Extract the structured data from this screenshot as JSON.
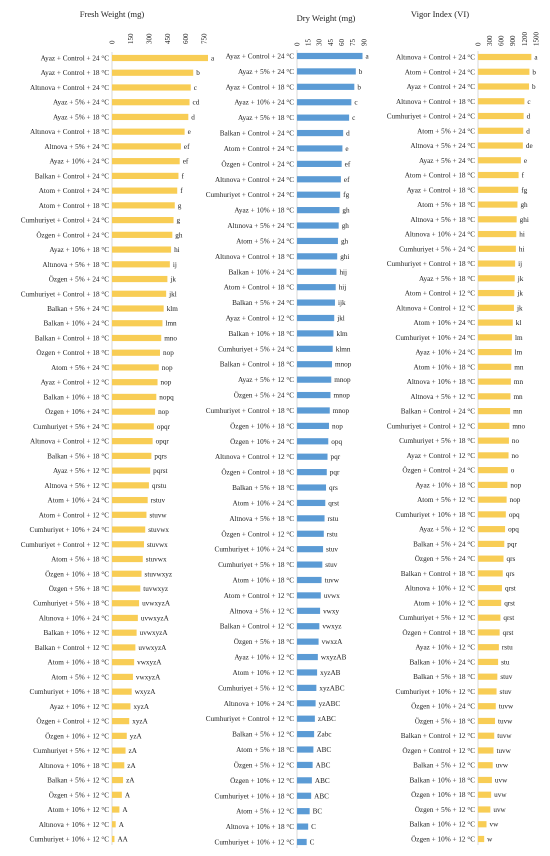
{
  "chart_data": [
    {
      "type": "bar",
      "orientation": "horizontal",
      "title": "Fresh Weight (mg)",
      "xticks": [
        0,
        150,
        300,
        450,
        600,
        750
      ],
      "xlim": [
        0,
        780
      ],
      "color": "#f8cd55",
      "categories": [
        "Ayaz + Control + 24 °C",
        "Ayaz + Control + 18 °C",
        "Altınova + Control + 24 °C",
        "Ayaz + 5% + 24 °C",
        "Ayaz + 5% + 18 °C",
        "Altınova + Control + 18 °C",
        "Altnova + 5% + 24 °C",
        "Ayaz + 10% + 24 °C",
        "Balkan + Control + 24 °C",
        "Atom + Control + 24 °C",
        "Atom + Control + 18 °C",
        "Cumhuriyet + Control + 24 °C",
        "Özgen + Control + 24 °C",
        "Ayaz + 10% + 18 °C",
        "Altınova + 5% + 18 °C",
        "Özgen + 5% + 24 °C",
        "Cumhuriyet + Control + 18 °C",
        "Balkan + 5% + 24 °C",
        "Balkan + 10% + 24 °C",
        "Balkan + Control + 18 °C",
        "Özgen + Control + 18 °C",
        "Atom + 5% + 24 °C",
        "Ayaz + Control + 12 °C",
        "Balkan + 10% + 18 °C",
        "Özgen + 10% + 24 °C",
        "Cumhuriyet + 5% + 24 °C",
        "Altınova + Control + 12 °C",
        "Balkan + 5% + 18 °C",
        "Ayaz + 5% + 12 °C",
        "Altnova + 5% + 12 °C",
        "Atom + 10% + 24 °C",
        "Atom + Control + 12 °C",
        "Cumhuriyet + 10% + 24 °C",
        "Cumhuriyet + Control + 12 °C",
        "Atom + 5% + 18 °C",
        "Özgen + 10% + 18 °C",
        "Özgen + 5% + 18 °C",
        "Cumhuriyet + 5% + 18 °C",
        "Altınova + 10% + 24 °C",
        "Balkan + 10% + 12 °C",
        "Balkan + Control + 12 °C",
        "Atom + 10% + 18 °C",
        "Atom + 5% + 12 °C",
        "Cumhuriyet + 10% + 18 °C",
        "Ayaz + 10% + 12 °C",
        "Özgen + Control + 12 °C",
        "Özgen + 10% + 12 °C",
        "Cumhuriyet + 5% + 12 °C",
        "Altınova + 10% + 18 °C",
        "Balkan + 5% + 12 °C",
        "Özgen + 5% + 12 °C",
        "Atom + 10% + 12 °C",
        "Altınova + 10% + 12 °C",
        "Cumhuriyet + 10% + 12 °C"
      ],
      "values": [
        780,
        660,
        640,
        630,
        620,
        590,
        560,
        550,
        540,
        530,
        510,
        500,
        490,
        480,
        470,
        450,
        440,
        420,
        410,
        400,
        390,
        380,
        370,
        360,
        350,
        340,
        330,
        320,
        310,
        300,
        290,
        280,
        270,
        260,
        250,
        240,
        230,
        220,
        210,
        200,
        190,
        180,
        170,
        160,
        150,
        140,
        120,
        110,
        100,
        90,
        80,
        60,
        30,
        20
      ],
      "labels": [
        "a",
        "b",
        "c",
        "cd",
        "d",
        "e",
        "ef",
        "ef",
        "f",
        "f",
        "g",
        "g",
        "gh",
        "hi",
        "ij",
        "jk",
        "jkl",
        "klm",
        "lmn",
        "mno",
        "nop",
        "nop",
        "nop",
        "nopq",
        "nop",
        "opqr",
        "opqr",
        "pqrs",
        "pqrst",
        "qrstu",
        "rstuv",
        "stuvw",
        "stuvwx",
        "stuvwx",
        "stuvwx",
        "stuvwxyz",
        "tuvwxyz",
        "uvwxyzA",
        "uvwxyzA",
        "uvwxyzA",
        "uvwxyzA",
        "vwxyzA",
        "vwxyzA",
        "wxyzA",
        "xyzA",
        "xyzA",
        "yzA",
        "zA",
        "zA",
        "zA",
        "A",
        "A",
        "A",
        "AA"
      ]
    },
    {
      "type": "bar",
      "orientation": "horizontal",
      "title": "Dry Weight (mg)",
      "xticks": [
        0,
        15,
        30,
        45,
        60,
        75,
        90
      ],
      "xlim": [
        0,
        90
      ],
      "color": "#5b9bd5",
      "categories": [
        "Ayaz + Control + 24 °C",
        "Ayaz + 5% + 24 °C",
        "Ayaz + Control + 18 °C",
        "Ayaz + 10% + 24 °C",
        "Ayaz + 5% + 18 °C",
        "Balkan + Control + 24 °C",
        "Atom + Control + 24 °C",
        "Özgen + Control + 24 °C",
        "Altınova + Control + 24 °C",
        "Cumhuriyet + Control + 24 °C",
        "Ayaz + 10% + 18 °C",
        "Altınova + 5% + 24 °C",
        "Atom + 5% + 24 °C",
        "Altınova + Control + 18 °C",
        "Balkan + 10% + 24 °C",
        "Atom + Control + 18 °C",
        "Balkan + 5% + 24 °C",
        "Ayaz + Control + 12 °C",
        "Balkan + 10% + 18 °C",
        "Cumhuriyet + 5% + 24 °C",
        "Balkan + Control + 18 °C",
        "Ayaz + 5% + 12 °C",
        "Özgen + 5% + 24 °C",
        "Cumhuriyet + Control + 18 °C",
        "Özgen + 10% + 18 °C",
        "Özgen + 10% + 24 °C",
        "Altınova + Control + 12 °C",
        "Özgen + Control + 18 °C",
        "Balkan + 5% + 18 °C",
        "Atom + 10% + 24 °C",
        "Altnova + 5% + 18 °C",
        "Özgen + Control + 12 °C",
        "Cumhuriyet + 10% + 24 °C",
        "Cumhuriyet + 5% + 18 °C",
        "Atom + 10% + 18 °C",
        "Atom + Control + 12 °C",
        "Altnova + 5% + 12 °C",
        "Balkan + Control + 12 °C",
        "Özgen + 5% + 18 °C",
        "Ayaz + 10% + 12 °C",
        "Atom + 10% + 12 °C",
        "Cumhuriyet + 5% + 12 °C",
        "Altınova + 10% + 24 °C",
        "Cumhuriyet + Control + 12 °C",
        "Balkan + 5% + 12 °C",
        "Atom + 5% + 18 °C",
        "Özgen + 5% + 12 °C",
        "Özgen + 10% + 12 °C",
        "Cumhuriyet + 10% + 18 °C",
        "Atom + 5% + 12 °C",
        "Altnova + 10% + 18 °C",
        "Cumhuriyet + 10% + 12 °C"
      ],
      "values": [
        88,
        79,
        77,
        73,
        70,
        62,
        61,
        60,
        59,
        58,
        57,
        56,
        55,
        54,
        53,
        52,
        51,
        50,
        49,
        48,
        47,
        46,
        45,
        44,
        43,
        42,
        41,
        40,
        39,
        38,
        37,
        36,
        35,
        34,
        33,
        32,
        31,
        30,
        29,
        28,
        27,
        26,
        25,
        24,
        23,
        22,
        21,
        20,
        19,
        17,
        15,
        13
      ],
      "labels": [
        "a",
        "b",
        "b",
        "c",
        "c",
        "d",
        "e",
        "ef",
        "ef",
        "fg",
        "gh",
        "gh",
        "gh",
        "ghi",
        "hij",
        "hij",
        "ijk",
        "jkl",
        "klm",
        "klmn",
        "mnop",
        "mnop",
        "mnop",
        "mnop",
        "nop",
        "opq",
        "pqr",
        "pqr",
        "qrs",
        "qrst",
        "rstu",
        "rstu",
        "stuv",
        "stuv",
        "tuvw",
        "uvwx",
        "vwxy",
        "vwxyz",
        "vwxzA",
        "wxyzAB",
        "xyzAB",
        "xyzABC",
        "yzABC",
        "zABC",
        "Zabc",
        "ABC",
        "ABC",
        "ABC",
        "ABC",
        "BC",
        "C",
        "C"
      ]
    },
    {
      "type": "bar",
      "orientation": "horizontal",
      "title": "Vigor Index (VI)",
      "xticks": [
        0,
        300,
        600,
        900,
        1200,
        1500
      ],
      "xlim": [
        0,
        1500
      ],
      "color": "#f8cd55",
      "categories": [
        "Altınova + Control + 24 °C",
        "Atom + Control + 24 °C",
        "Ayaz + Control + 24 °C",
        "Altınova + Control + 18 °C",
        "Cumhuriyet + Control + 24 °C",
        "Atom + 5% + 24 °C",
        "Altnova + 5% + 24 °C",
        "Ayaz + 5% + 24 °C",
        "Atom + Control + 18 °C",
        "Ayaz + Control + 18 °C",
        "Atom + 5% + 18 °C",
        "Altnova + 5% + 18 °C",
        "Altınova + 10% + 24 °C",
        "Cumhuriyet + 5% + 24 °C",
        "Cumhuriyet + Control + 18 °C",
        "Ayaz + 5% + 18 °C",
        "Atom + Control + 12 °C",
        "Altınova + Control + 12 °C",
        "Atom + 10% + 24 °C",
        "Cumhuriyet + 10% + 24 °C",
        "Ayaz + 10% + 24 °C",
        "Atom + 10% + 18 °C",
        "Altnova + 10% + 18 °C",
        "Altnova + 5% + 12 °C",
        "Balkan + Control + 24 °C",
        "Cumhuriyet + Control + 12 °C",
        "Cumhuriyet + 5% + 18 °C",
        "Ayaz + Control + 12 °C",
        "Özgen + Control + 24 °C",
        "Ayaz + 10% + 18 °C",
        "Atom + 5% + 12 °C",
        "Cumhuriyet + 10% + 18 °C",
        "Ayaz + 5% + 12 °C",
        "Balkan + 5% + 24 °C",
        "Özgen + 5% + 24 °C",
        "Balkan + Control + 18 °C",
        "Altınova + 10% + 12 °C",
        "Atom + 10% + 12 °C",
        "Cumhuriyet + 5% + 12 °C",
        "Özgen + Control + 18 °C",
        "Ayaz + 10% + 12 °C",
        "Balkan + 10% + 24 °C",
        "Balkan + 5% + 18 °C",
        "Cumhuriyet + 10% + 12 °C",
        "Özgen + 10% + 24 °C",
        "Özgen + 5% + 18 °C",
        "Balkan + Control + 12 °C",
        "Özgen + Control + 12 °C",
        "Balkan + 5% + 12 °C",
        "Balkan + 10% + 18 °C",
        "Özgen + 10% + 18 °C",
        "Özgen + 5% + 12 °C",
        "Balkan + 10% + 12 °C",
        "Özgen + 10% + 12 °C"
      ],
      "values": [
        1380,
        1330,
        1320,
        1200,
        1180,
        1170,
        1160,
        1110,
        1050,
        1040,
        1020,
        1000,
        990,
        980,
        960,
        950,
        940,
        930,
        900,
        880,
        870,
        860,
        850,
        840,
        830,
        810,
        800,
        790,
        770,
        760,
        740,
        720,
        700,
        680,
        660,
        640,
        620,
        600,
        580,
        560,
        540,
        520,
        500,
        480,
        460,
        440,
        420,
        400,
        380,
        360,
        340,
        320,
        220,
        160
      ],
      "labels": [
        "a",
        "b",
        "b",
        "c",
        "d",
        "d",
        "de",
        "e",
        "f",
        "fg",
        "gh",
        "ghi",
        "hi",
        "hi",
        "ij",
        "jk",
        "jk",
        "jk",
        "kl",
        "lm",
        "lm",
        "mn",
        "mn",
        "mn",
        "mn",
        "mno",
        "no",
        "no",
        "o",
        "nop",
        "nop",
        "opq",
        "opq",
        "pqr",
        "qrs",
        "qrs",
        "qrst",
        "qrst",
        "qrst",
        "qrst",
        "rstu",
        "stu",
        "stuv",
        "stuv",
        "tuvw",
        "tuvw",
        "tuvw",
        "tuvw",
        "uvw",
        "uvw",
        "uvw",
        "uvw",
        "vw",
        "w"
      ]
    }
  ]
}
